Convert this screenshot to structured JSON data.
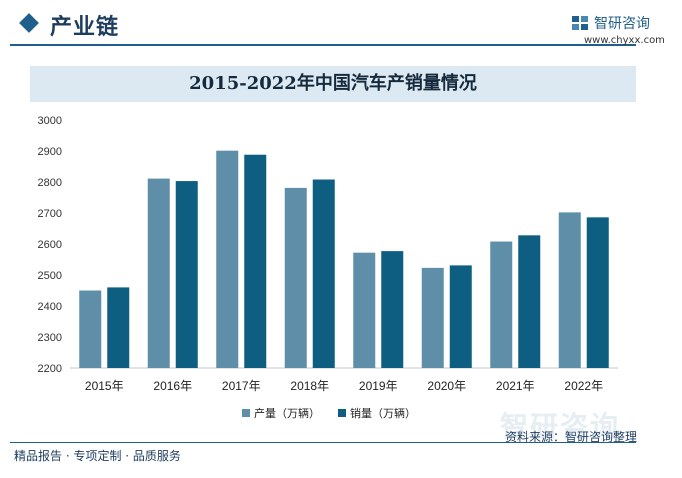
{
  "header": {
    "title": "产业链",
    "logo_name": "智研咨询",
    "logo_url": "www.chyxx.com"
  },
  "footer": {
    "left_text": "精品报告 · 专项定制 · 品质服务",
    "source": "资料来源：智研咨询整理"
  },
  "colors": {
    "accent": "#1f5f8b",
    "series_1": "#5f8fa8",
    "series_2": "#0d5e80",
    "title_bg": "#dde9f2"
  },
  "chart_data": {
    "type": "bar",
    "title": "2015-2022年中国汽车产销量情况",
    "categories": [
      "2015年",
      "2016年",
      "2017年",
      "2018年",
      "2019年",
      "2020年",
      "2021年",
      "2022年"
    ],
    "series": [
      {
        "name": "产量（万辆）",
        "values": [
          2450,
          2811,
          2901,
          2781,
          2572,
          2523,
          2608,
          2702
        ]
      },
      {
        "name": "销量（万辆）",
        "values": [
          2460,
          2803,
          2888,
          2808,
          2577,
          2531,
          2628,
          2686
        ]
      }
    ],
    "ylim": [
      2200,
      3000
    ],
    "yticks": [
      "2200",
      "2300",
      "2400",
      "2500",
      "2600",
      "2700",
      "2800",
      "2900",
      "3000"
    ],
    "grid": false,
    "legend": "bottom"
  }
}
